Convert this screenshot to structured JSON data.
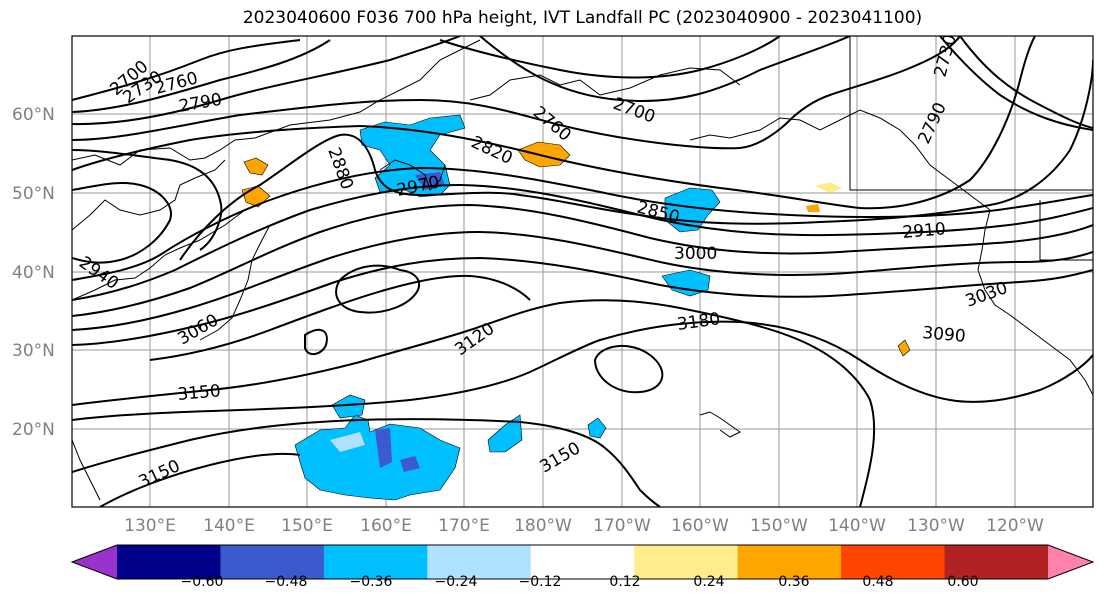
{
  "title": "2023040600 F036 700 hPa height, IVT Landfall PC (2023040900 - 2023041100)",
  "lat_labels": [
    "60°N",
    "50°N",
    "40°N",
    "30°N",
    "20°N"
  ],
  "lon_labels": [
    "130°E",
    "140°E",
    "150°E",
    "160°E",
    "170°E",
    "180°W",
    "170°W",
    "160°W",
    "150°W",
    "140°W",
    "130°W",
    "120°W"
  ],
  "contour_labels": [
    "2700",
    "2730",
    "2760",
    "2790",
    "2880",
    "2820",
    "2760",
    "2700",
    "2970",
    "2850",
    "3000",
    "2910",
    "2730",
    "2790",
    "2940",
    "3060",
    "3120",
    "3180",
    "3090",
    "3030",
    "3150",
    "3150",
    "3150"
  ],
  "colorbar": {
    "ticks": [
      "−0.60",
      "−0.48",
      "−0.36",
      "−0.24",
      "−0.12",
      "0.12",
      "0.24",
      "0.36",
      "0.48",
      "0.60"
    ],
    "colors": [
      "#9932cc",
      "#00008b",
      "#3a5acd",
      "#00bfff",
      "#b0e2ff",
      "#ffffff",
      "#ffec8b",
      "#ffa500",
      "#ff4500",
      "#b22222",
      "#ff82ab"
    ]
  }
}
